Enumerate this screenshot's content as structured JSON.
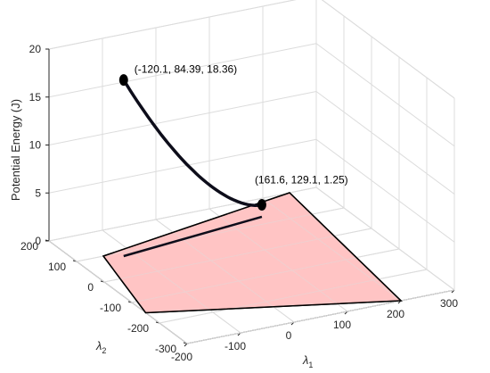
{
  "chart_data": {
    "type": "line3d",
    "xlabel": "λ1",
    "ylabel": "λ2",
    "zlabel": "Potential Energy (J)",
    "xlim": [
      -200,
      300
    ],
    "ylim": [
      -300,
      200
    ],
    "zlim": [
      0,
      20
    ],
    "xticks": [
      -200,
      -100,
      0,
      100,
      200,
      300
    ],
    "yticks": [
      -300,
      -200,
      -100,
      0,
      100,
      200
    ],
    "zticks": [
      0,
      5,
      10,
      15,
      20
    ],
    "grid": true,
    "plane": {
      "z": 0,
      "corners": [
        [
          -150,
          100
        ],
        [
          250,
          200
        ],
        [
          200,
          -300
        ],
        [
          -200,
          -150
        ]
      ],
      "fill": "#ffc4c4"
    },
    "curve": {
      "start": [
        -120.1,
        84.39,
        18.36
      ],
      "end": [
        161.6,
        129.1,
        1.25
      ],
      "color": "#0d0d1a"
    },
    "projection": {
      "start": [
        -120.1,
        84.39,
        0
      ],
      "end": [
        161.6,
        129.1,
        0
      ]
    },
    "annotations": [
      {
        "text": "(-120.1, 84.39, 18.36)",
        "point": [
          -120.1,
          84.39,
          18.36
        ]
      },
      {
        "text": "(161.6, 129.1, 1.25)",
        "point": [
          161.6,
          129.1,
          1.25
        ]
      }
    ]
  }
}
